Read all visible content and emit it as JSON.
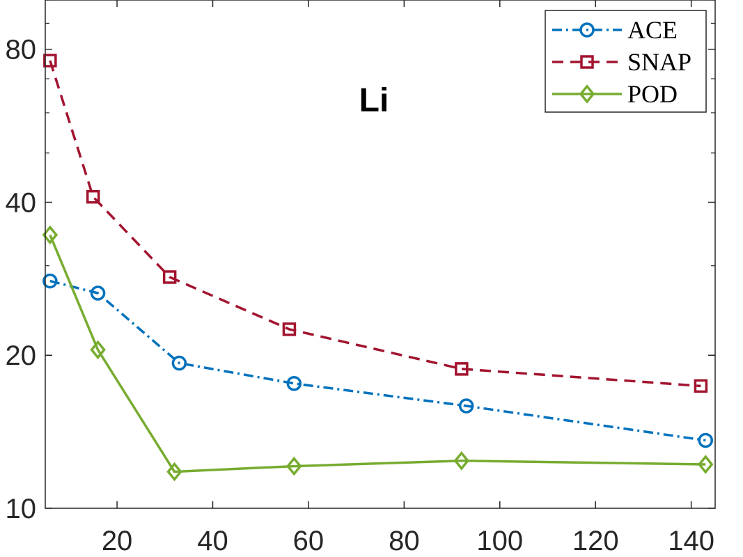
{
  "chart_data": {
    "type": "line",
    "title": "Li",
    "xlabel": "",
    "ylabel": "",
    "xlim": [
      5,
      145
    ],
    "ylim": [
      10,
      100
    ],
    "y_scale": "log",
    "x_ticks": [
      20,
      40,
      60,
      80,
      100,
      120,
      140
    ],
    "y_ticks": [
      10,
      20,
      40,
      80
    ],
    "legend_position": "top-right",
    "grid": false,
    "series": [
      {
        "name": "ACE",
        "color": "#0072BD",
        "line_style": "dash-dot",
        "marker": "circle",
        "x": [
          6,
          16,
          33,
          57,
          93,
          143
        ],
        "y": [
          28,
          26.5,
          19.3,
          17.6,
          15.9,
          13.6
        ]
      },
      {
        "name": "SNAP",
        "color": "#A2142F",
        "line_style": "dashed",
        "marker": "square",
        "x": [
          6,
          15,
          31,
          56,
          92,
          142
        ],
        "y": [
          76,
          41,
          28.5,
          22.5,
          18.8,
          17.4
        ]
      },
      {
        "name": "POD",
        "color": "#77AC30",
        "line_style": "solid",
        "marker": "diamond",
        "x": [
          6,
          16,
          32,
          57,
          92,
          143
        ],
        "y": [
          34.5,
          20.5,
          11.8,
          12.1,
          12.4,
          12.2
        ]
      }
    ]
  }
}
